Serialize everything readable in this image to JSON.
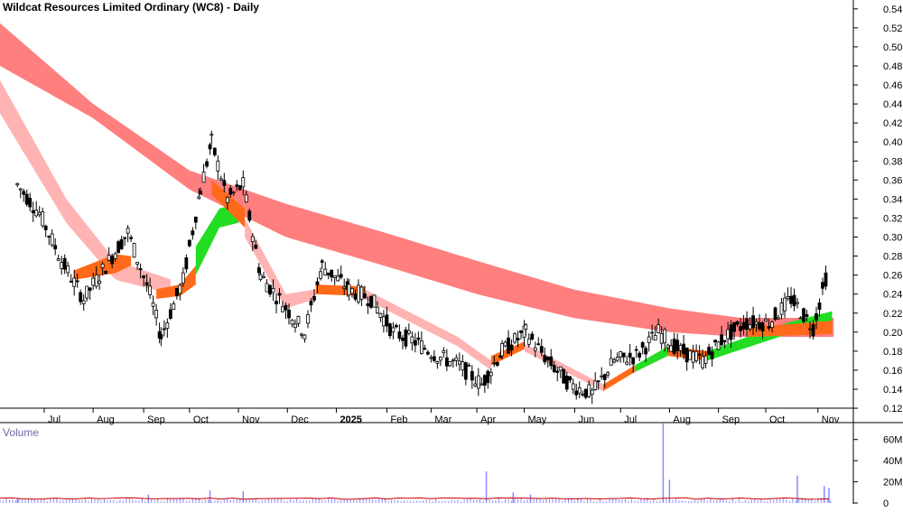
{
  "chart_data": [
    {
      "type": "candlestick",
      "title": "Wildcat Resources Limited Ordinary (WC8) - Daily",
      "y_ticks": [
        "0.54",
        "0.52",
        "0.50",
        "0.48",
        "0.46",
        "0.44",
        "0.42",
        "0.40",
        "0.38",
        "0.36",
        "0.34",
        "0.32",
        "0.30",
        "0.28",
        "0.26",
        "0.24",
        "0.22",
        "0.20",
        "0.18",
        "0.16",
        "0.14",
        "0.12"
      ],
      "ylim": [
        0.115,
        0.55
      ],
      "x_ticks": [
        "Jul",
        "Aug",
        "Sep",
        "Oct",
        "Nov",
        "Dec",
        "2025",
        "Feb",
        "Mar",
        "Apr",
        "May",
        "Jun",
        "Jul",
        "Aug",
        "Sep",
        "Oct",
        "Nov"
      ],
      "close_series": [
        {
          "date": "2024-06-14",
          "close": 0.355
        },
        {
          "date": "2024-06-28",
          "close": 0.325
        },
        {
          "date": "2024-07-12",
          "close": 0.275
        },
        {
          "date": "2024-07-26",
          "close": 0.235
        },
        {
          "date": "2024-08-09",
          "close": 0.27
        },
        {
          "date": "2024-08-23",
          "close": 0.305
        },
        {
          "date": "2024-09-06",
          "close": 0.24
        },
        {
          "date": "2024-09-13",
          "close": 0.195
        },
        {
          "date": "2024-09-27",
          "close": 0.255
        },
        {
          "date": "2024-10-08",
          "close": 0.35
        },
        {
          "date": "2024-10-15",
          "close": 0.4
        },
        {
          "date": "2024-10-25",
          "close": 0.34
        },
        {
          "date": "2024-11-04",
          "close": 0.355
        },
        {
          "date": "2024-11-15",
          "close": 0.26
        },
        {
          "date": "2024-11-29",
          "close": 0.23
        },
        {
          "date": "2024-12-13",
          "close": 0.2
        },
        {
          "date": "2024-12-24",
          "close": 0.27
        },
        {
          "date": "2025-01-10",
          "close": 0.245
        },
        {
          "date": "2025-01-24",
          "close": 0.235
        },
        {
          "date": "2025-02-07",
          "close": 0.2
        },
        {
          "date": "2025-02-21",
          "close": 0.19
        },
        {
          "date": "2025-03-07",
          "close": 0.175
        },
        {
          "date": "2025-03-21",
          "close": 0.165
        },
        {
          "date": "2025-04-04",
          "close": 0.145
        },
        {
          "date": "2025-04-17",
          "close": 0.18
        },
        {
          "date": "2025-05-02",
          "close": 0.2
        },
        {
          "date": "2025-05-16",
          "close": 0.17
        },
        {
          "date": "2025-05-30",
          "close": 0.145
        },
        {
          "date": "2025-06-13",
          "close": 0.135
        },
        {
          "date": "2025-06-27",
          "close": 0.17
        },
        {
          "date": "2025-07-11",
          "close": 0.175
        },
        {
          "date": "2025-07-25",
          "close": 0.2
        },
        {
          "date": "2025-08-08",
          "close": 0.18
        },
        {
          "date": "2025-08-22",
          "close": 0.17
        },
        {
          "date": "2025-09-05",
          "close": 0.195
        },
        {
          "date": "2025-09-19",
          "close": 0.21
        },
        {
          "date": "2025-10-03",
          "close": 0.21
        },
        {
          "date": "2025-10-17",
          "close": 0.235
        },
        {
          "date": "2025-10-31",
          "close": 0.205
        },
        {
          "date": "2025-11-10",
          "close": 0.27
        }
      ],
      "bands": [
        {
          "style": "long-term (red: falling)",
          "start_date": "2024-06-03",
          "points": [
            {
              "date": "2024-06-03",
              "upper": 0.525,
              "lower": 0.48
            },
            {
              "date": "2024-08-01",
              "upper": 0.44,
              "lower": 0.425
            },
            {
              "date": "2024-10-01",
              "upper": 0.37,
              "lower": 0.35
            },
            {
              "date": "2024-12-01",
              "upper": 0.335,
              "lower": 0.3
            },
            {
              "date": "2025-02-01",
              "upper": 0.305,
              "lower": 0.27
            },
            {
              "date": "2025-04-01",
              "upper": 0.275,
              "lower": 0.24
            },
            {
              "date": "2025-06-01",
              "upper": 0.245,
              "lower": 0.215
            },
            {
              "date": "2025-08-01",
              "upper": 0.225,
              "lower": 0.2
            },
            {
              "date": "2025-09-15",
              "upper": 0.215,
              "lower": 0.195
            }
          ]
        },
        {
          "style": "short-term (pink: falling)",
          "start_date": "2024-06-03",
          "points": [
            {
              "date": "2024-06-03",
              "upper": 0.465,
              "lower": 0.43
            },
            {
              "date": "2024-07-15",
              "upper": 0.34,
              "lower": 0.315
            },
            {
              "date": "2024-08-15",
              "upper": 0.275,
              "lower": 0.255
            },
            {
              "date": "2024-09-20",
              "upper": 0.255,
              "lower": 0.24
            }
          ]
        }
      ],
      "volume": {
        "title": "Volume",
        "y_ticks": [
          "60M",
          "40M",
          "20M",
          "0"
        ],
        "ylim": [
          0,
          70000000
        ],
        "spikes": [
          {
            "date": "2024-06-14",
            "value": 4000000
          },
          {
            "date": "2024-09-05",
            "value": 8000000
          },
          {
            "date": "2024-10-14",
            "value": 12000000
          },
          {
            "date": "2024-11-04",
            "value": 11000000
          },
          {
            "date": "2025-04-07",
            "value": 30000000
          },
          {
            "date": "2025-04-24",
            "value": 10000000
          },
          {
            "date": "2025-05-05",
            "value": 8000000
          },
          {
            "date": "2025-07-28",
            "value": 75000000
          },
          {
            "date": "2025-08-01",
            "value": 22000000
          },
          {
            "date": "2025-10-21",
            "value": 26000000
          },
          {
            "date": "2025-11-07",
            "value": 16000000
          },
          {
            "date": "2025-11-10",
            "value": 14000000
          }
        ]
      },
      "colors": {
        "long_band": "#ff7f7f",
        "short_band_falling": "#ffb3b3",
        "short_band_orange": "#ff6a1a",
        "short_band_green": "#22dd22",
        "candle": "#000000",
        "volume_bar": "#8a8aff",
        "volume_avg": "#cc0000"
      }
    }
  ]
}
